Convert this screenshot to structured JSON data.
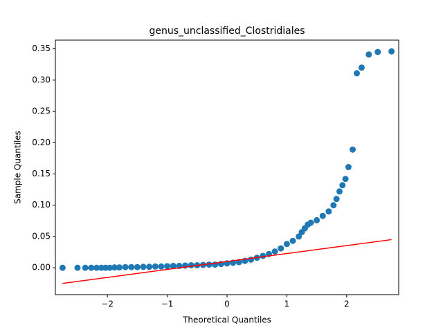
{
  "chart_data": {
    "type": "scatter",
    "title": "genus_unclassified_Clostridiales",
    "x_label": "Theoretical Quantiles",
    "y_label": "Sample Quantiles",
    "color": "#1f77b4",
    "x": [
      -2.75,
      -2.5,
      -2.37,
      -2.27,
      -2.18,
      -2.1,
      -2.03,
      -1.96,
      -1.88,
      -1.8,
      -1.7,
      -1.6,
      -1.5,
      -1.4,
      -1.3,
      -1.2,
      -1.1,
      -1.0,
      -0.9,
      -0.8,
      -0.7,
      -0.6,
      -0.5,
      -0.4,
      -0.3,
      -0.2,
      -0.1,
      0.0,
      0.1,
      0.2,
      0.3,
      0.4,
      0.5,
      0.6,
      0.7,
      0.8,
      0.9,
      1.0,
      1.1,
      1.2,
      1.25,
      1.3,
      1.35,
      1.4,
      1.5,
      1.6,
      1.7,
      1.78,
      1.83,
      1.88,
      1.93,
      1.98,
      2.03,
      2.1,
      2.17,
      2.25,
      2.37,
      2.52,
      2.75
    ],
    "values": [
      0.0,
      0.0,
      0.0,
      0.0,
      0.0,
      0.0,
      0.0,
      0.0,
      0.0005,
      0.0005,
      0.001,
      0.001,
      0.001,
      0.0015,
      0.0015,
      0.002,
      0.002,
      0.0025,
      0.003,
      0.003,
      0.0035,
      0.004,
      0.004,
      0.0045,
      0.005,
      0.005,
      0.006,
      0.007,
      0.008,
      0.009,
      0.011,
      0.013,
      0.016,
      0.019,
      0.022,
      0.026,
      0.031,
      0.038,
      0.043,
      0.05,
      0.057,
      0.063,
      0.069,
      0.072,
      0.076,
      0.083,
      0.09,
      0.1,
      0.11,
      0.122,
      0.132,
      0.142,
      0.161,
      0.189,
      0.311,
      0.32,
      0.341,
      0.345,
      0.346
    ],
    "reference_line": {
      "x": [
        -2.75,
        2.75
      ],
      "values": [
        -0.025,
        0.045
      ],
      "color": "#ff0000"
    },
    "xlim": [
      -2.87,
      2.87
    ],
    "ylim": [
      -0.043,
      0.364
    ],
    "xticks": [
      {
        "value": -2,
        "label": "−2"
      },
      {
        "value": -1,
        "label": "−1"
      },
      0,
      1,
      2
    ],
    "yticks": [
      {
        "value": 0,
        "label": "0.00"
      },
      {
        "value": 0.05,
        "label": "0.05"
      },
      {
        "value": 0.1,
        "label": "0.10"
      },
      {
        "value": 0.15,
        "label": "0.15"
      },
      {
        "value": 0.2,
        "label": "0.20"
      },
      {
        "value": 0.25,
        "label": "0.25"
      },
      {
        "value": 0.3,
        "label": "0.30"
      },
      {
        "value": 0.35,
        "label": "0.35"
      }
    ]
  }
}
